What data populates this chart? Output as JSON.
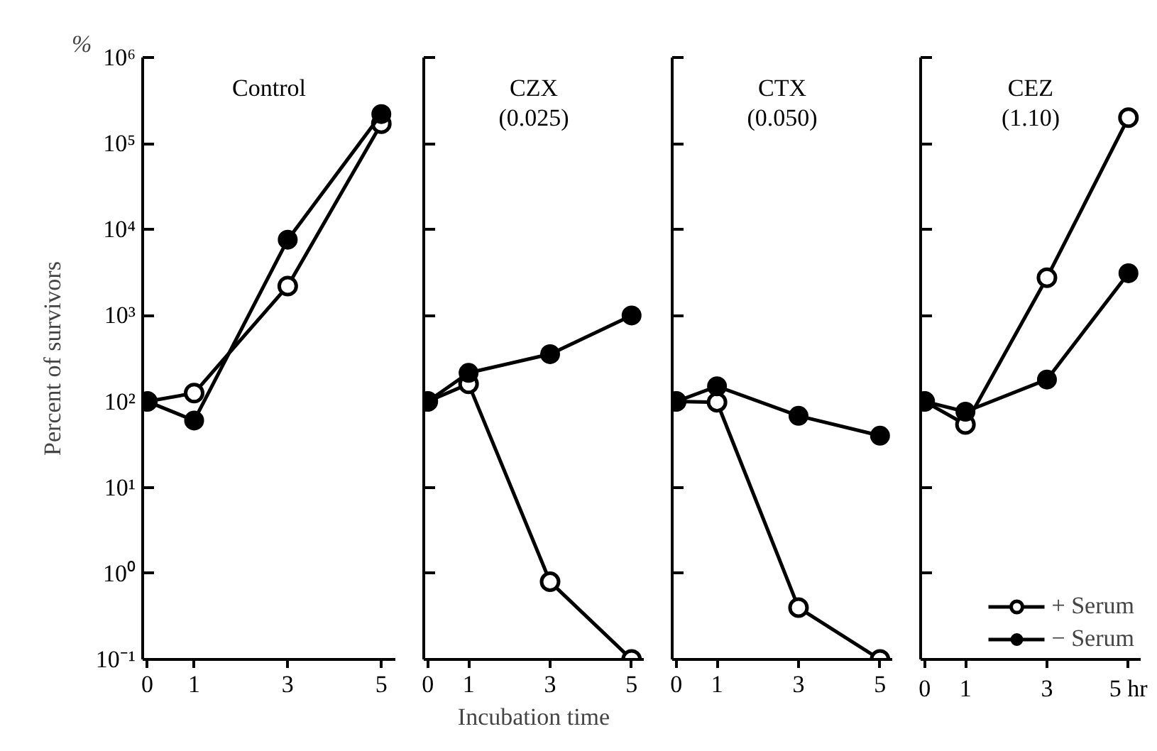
{
  "chart_data": [
    {
      "type": "line",
      "title": "Control",
      "ylabel": "Percent of survivors",
      "annotations": [
        "%"
      ],
      "x": [
        0,
        1,
        3,
        5
      ],
      "xlim": [
        -0.1,
        5.3
      ],
      "xticks": [
        0,
        1,
        3,
        5
      ],
      "log": true,
      "ylim": [
        0.1,
        1000000
      ],
      "yticks": [
        {
          "value": 0.1,
          "label": "10⁻¹"
        },
        {
          "value": 1,
          "label": "10⁰"
        },
        {
          "value": 10,
          "label": "10¹"
        },
        {
          "value": 100,
          "label": "10²"
        },
        {
          "value": 1000,
          "label": "10³"
        },
        {
          "value": 10000,
          "label": "10⁴"
        },
        {
          "value": 100000,
          "label": "10⁵"
        },
        {
          "value": 1000000,
          "label": "10⁶"
        }
      ],
      "grid": false,
      "legend": false,
      "series": [
        {
          "color": "#000000",
          "marker": "circle_open",
          "values": [
            100,
            125,
            2200,
            170000
          ]
        },
        {
          "color": "#000000",
          "marker": "circle",
          "values": [
            100,
            60,
            7600,
            220000
          ]
        }
      ]
    },
    {
      "type": "line",
      "title": "CZX\n(0.025)",
      "xlabel": "Incubation time",
      "x": [
        0,
        1,
        3,
        5
      ],
      "xlim": [
        -0.1,
        5.3
      ],
      "xticks": [
        0,
        1,
        3,
        5
      ],
      "log": true,
      "ylim": [
        0.1,
        1000000
      ],
      "yticks": [
        0.1,
        1,
        10,
        100,
        1000,
        10000,
        100000,
        1000000
      ],
      "tick_labels": "x",
      "grid": false,
      "legend": false,
      "series": [
        {
          "color": "#000000",
          "marker": "circle_open",
          "values": [
            100,
            160,
            0.8,
            0.1
          ]
        },
        {
          "color": "#000000",
          "marker": "circle",
          "values": [
            100,
            215,
            355,
            1000
          ]
        }
      ]
    },
    {
      "type": "line",
      "title": "CTX\n(0.050)",
      "x": [
        0,
        1,
        3,
        5
      ],
      "xlim": [
        -0.1,
        5.3
      ],
      "xticks": [
        0,
        1,
        3,
        5
      ],
      "log": true,
      "ylim": [
        0.1,
        1000000
      ],
      "yticks": [
        0.1,
        1,
        10,
        100,
        1000,
        10000,
        100000,
        1000000
      ],
      "tick_labels": "x",
      "grid": false,
      "legend": false,
      "series": [
        {
          "color": "#000000",
          "marker": "circle_open",
          "values": [
            100,
            98,
            0.4,
            0.1
          ]
        },
        {
          "color": "#000000",
          "marker": "circle",
          "values": [
            100,
            150,
            68,
            40
          ]
        }
      ]
    },
    {
      "type": "line",
      "title": "CEZ\n(1.10)",
      "x": [
        0,
        1,
        3,
        5
      ],
      "xlim": [
        -0.1,
        5.3
      ],
      "xticks": [
        0,
        1,
        3,
        {
          "value": 5,
          "label": "5 hr"
        }
      ],
      "log": true,
      "ylim": [
        0.1,
        1000000
      ],
      "yticks": [
        0.1,
        1,
        10,
        100,
        1000,
        10000,
        100000,
        1000000
      ],
      "tick_labels": "x",
      "grid": false,
      "legend": "bottom right",
      "series": [
        {
          "name": "+ Serum",
          "color": "#000000",
          "marker": "circle_open",
          "values": [
            100,
            54,
            2750,
            200000
          ]
        },
        {
          "name": "− Serum",
          "color": "#000000",
          "marker": "circle",
          "values": [
            100,
            76,
            180,
            3100
          ]
        }
      ]
    }
  ]
}
